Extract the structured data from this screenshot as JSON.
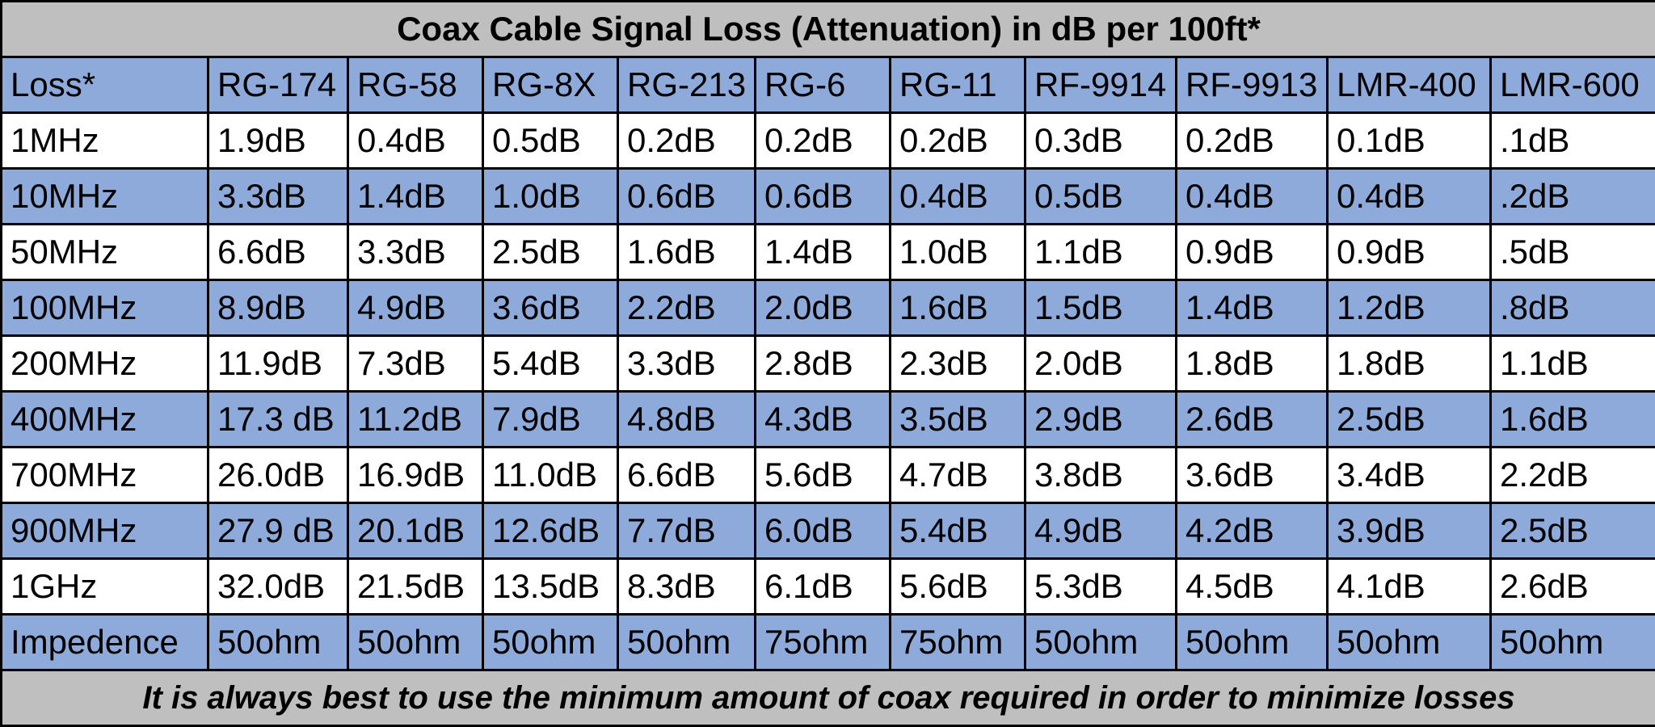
{
  "title": "Coax Cable Signal Loss (Attenuation) in dB per 100ft*",
  "header": [
    "Loss*",
    "RG-174",
    "RG-58",
    "RG-8X",
    "RG-213",
    "RG-6",
    "RG-11",
    "RF-9914",
    "RF-9913",
    "LMR-400",
    "LMR-600"
  ],
  "rows": [
    [
      "1MHz",
      "1.9dB",
      "0.4dB",
      "0.5dB",
      "0.2dB",
      "0.2dB",
      "0.2dB",
      "0.3dB",
      "0.2dB",
      "0.1dB",
      ".1dB"
    ],
    [
      "10MHz",
      "3.3dB",
      "1.4dB",
      "1.0dB",
      "0.6dB",
      "0.6dB",
      "0.4dB",
      "0.5dB",
      "0.4dB",
      "0.4dB",
      ".2dB"
    ],
    [
      "50MHz",
      "6.6dB",
      "3.3dB",
      "2.5dB",
      "1.6dB",
      "1.4dB",
      "1.0dB",
      "1.1dB",
      "0.9dB",
      "0.9dB",
      ".5dB"
    ],
    [
      "100MHz",
      "8.9dB",
      "4.9dB",
      "3.6dB",
      "2.2dB",
      "2.0dB",
      "1.6dB",
      "1.5dB",
      "1.4dB",
      "1.2dB",
      ".8dB"
    ],
    [
      "200MHz",
      "11.9dB",
      "7.3dB",
      "5.4dB",
      "3.3dB",
      "2.8dB",
      "2.3dB",
      "2.0dB",
      "1.8dB",
      "1.8dB",
      "1.1dB"
    ],
    [
      "400MHz",
      "17.3 dB",
      "11.2dB",
      "7.9dB",
      "4.8dB",
      "4.3dB",
      "3.5dB",
      "2.9dB",
      "2.6dB",
      "2.5dB",
      "1.6dB"
    ],
    [
      "700MHz",
      "26.0dB",
      "16.9dB",
      "11.0dB",
      "6.6dB",
      "5.6dB",
      "4.7dB",
      "3.8dB",
      "3.6dB",
      "3.4dB",
      "2.2dB"
    ],
    [
      "900MHz",
      "27.9 dB",
      "20.1dB",
      "12.6dB",
      "7.7dB",
      "6.0dB",
      "5.4dB",
      "4.9dB",
      "4.2dB",
      "3.9dB",
      "2.5dB"
    ],
    [
      "1GHz",
      "32.0dB",
      "21.5dB",
      "13.5dB",
      "8.3dB",
      "6.1dB",
      "5.6dB",
      "5.3dB",
      "4.5dB",
      "4.1dB",
      "2.6dB"
    ],
    [
      "Impedence",
      "50ohm",
      "50ohm",
      "50ohm",
      "50ohm",
      "75ohm",
      "75ohm",
      "50ohm",
      "50ohm",
      "50ohm",
      "50ohm"
    ]
  ],
  "footer": "It is always best to use the minimum amount of coax required in order to minimize losses",
  "colors": {
    "band_blue": "#8eaadb",
    "band_white": "#ffffff",
    "title_gray": "#bfbfbf",
    "border": "#000000"
  }
}
